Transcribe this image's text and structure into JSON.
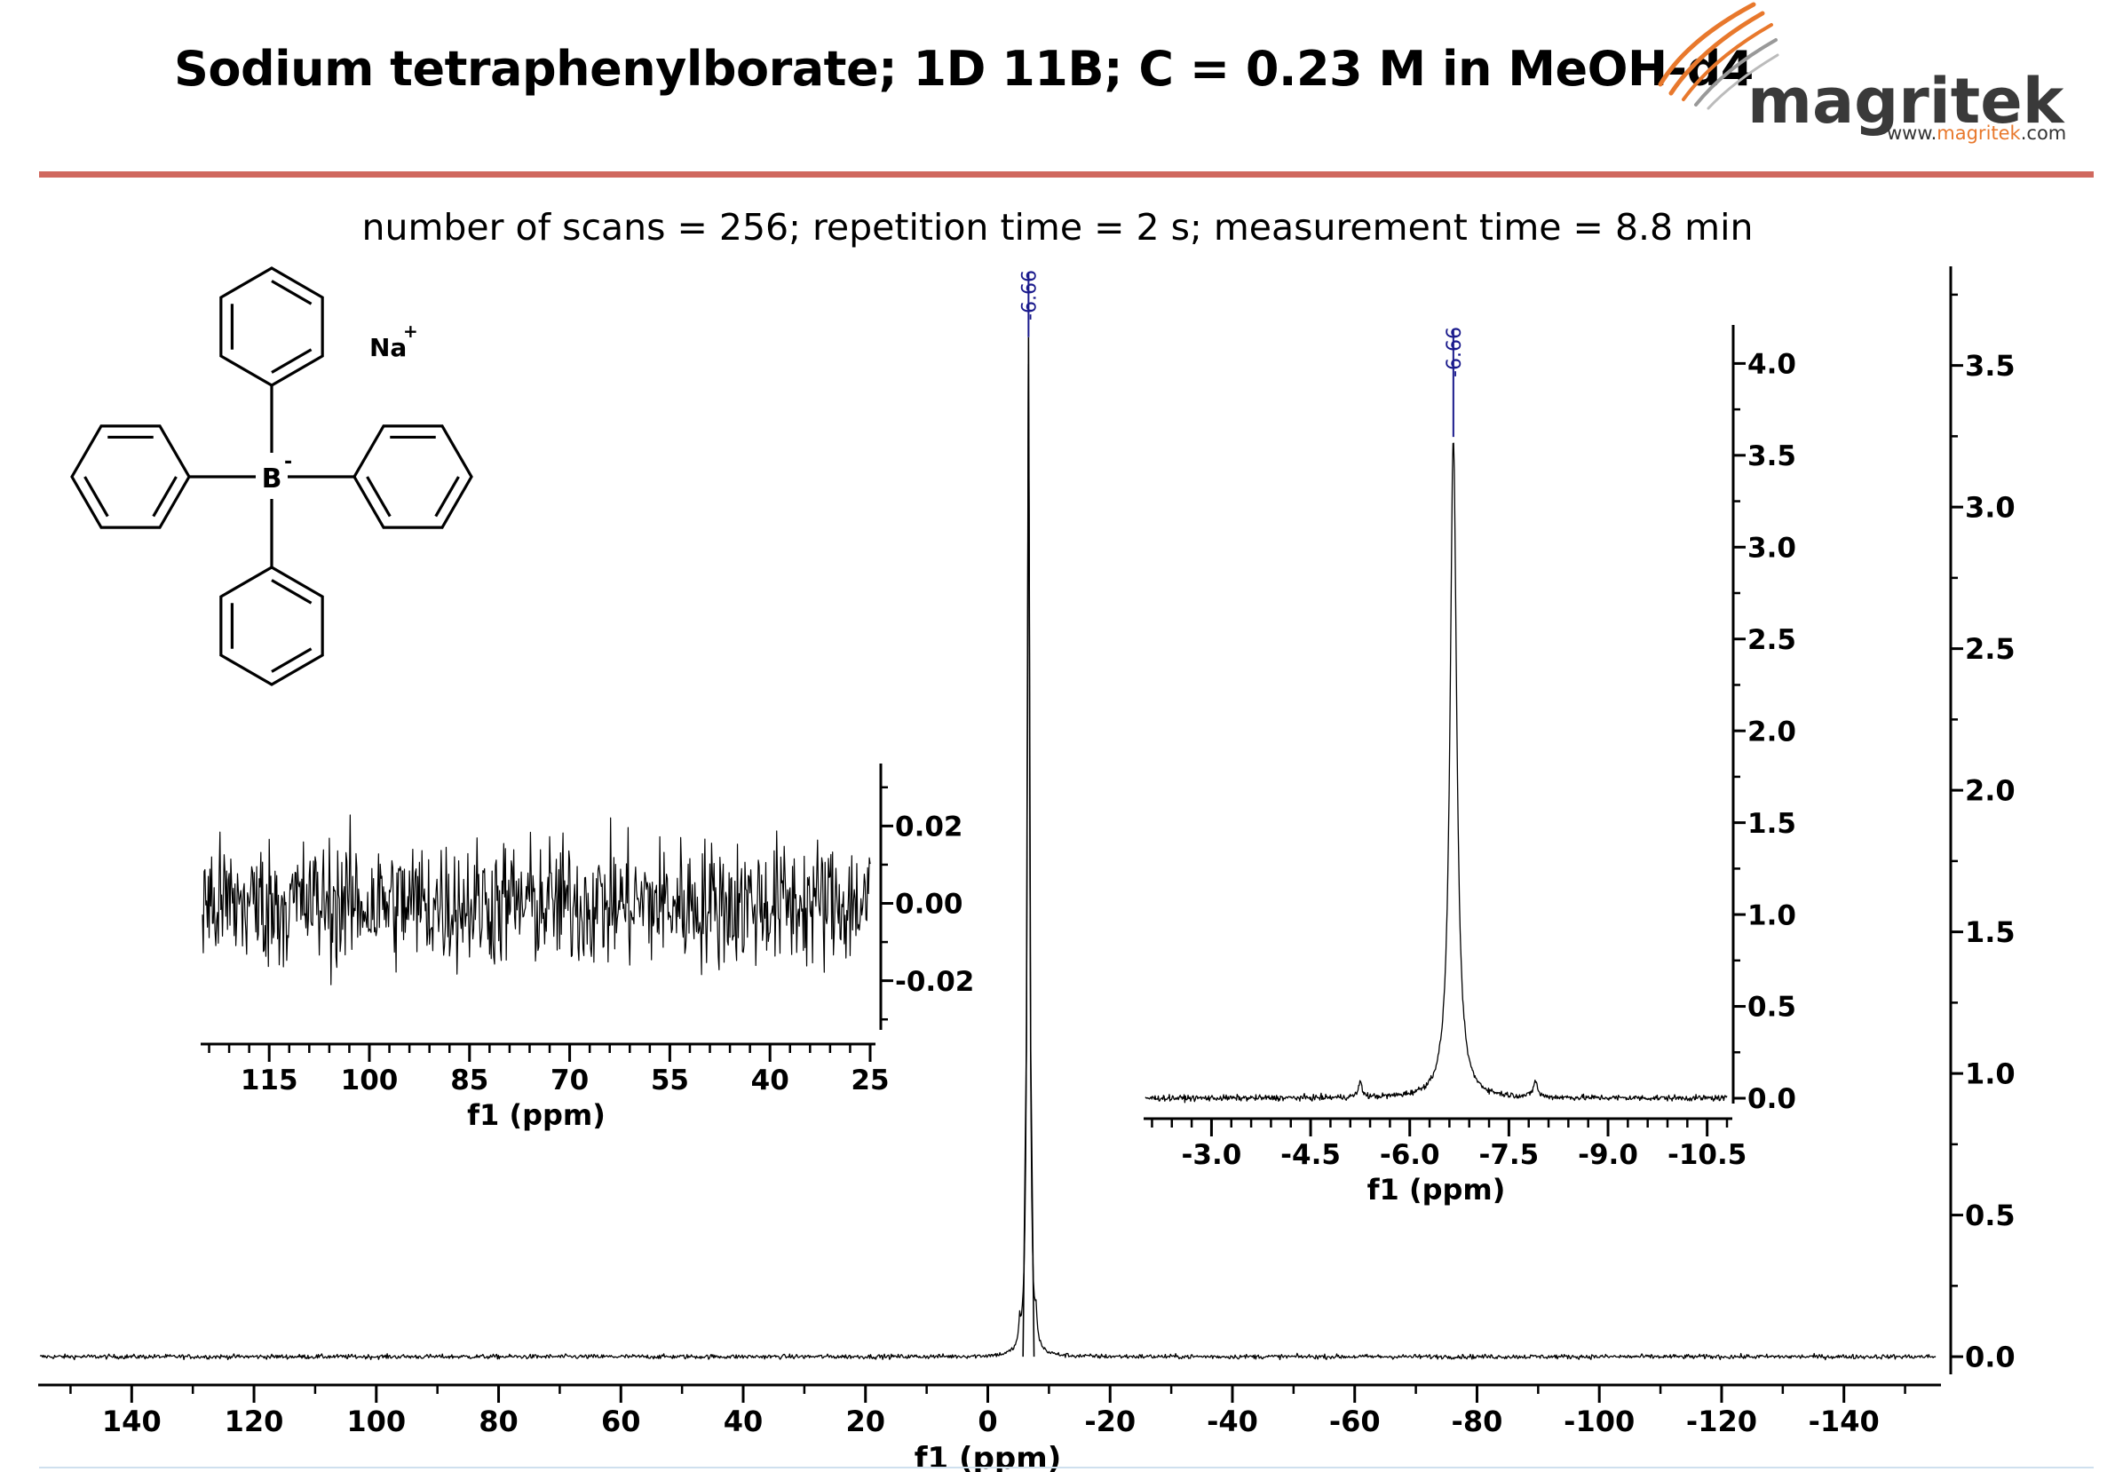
{
  "header": {
    "title": "Sodium tetraphenylborate; 1D 11B; C = 0.23 M in MeOH-d4",
    "subtitle": "number of scans = 256; repetition time = 2 s; measurement time = 8.8 min"
  },
  "logo": {
    "brand": "magritek",
    "url_prefix": "www.",
    "url_brand": "magritek",
    "url_suffix": ".com",
    "accent_color": "#e8782c"
  },
  "molecule": {
    "counterion": "Na",
    "counterion_charge": "+",
    "center_atom": "B",
    "center_charge": "-"
  },
  "colors": {
    "peak_label": "#1a1a8c",
    "rule": "#d0685e"
  },
  "chart_data": [
    {
      "type": "line",
      "id": "main",
      "xlabel": "f1 (ppm)",
      "xlim": [
        155,
        -155
      ],
      "x_ticks": [
        140,
        120,
        100,
        80,
        60,
        40,
        20,
        0,
        -20,
        -40,
        -60,
        -80,
        -100,
        -120,
        -140
      ],
      "x_tick_labels": [
        "140",
        "120",
        "100",
        "80",
        "60",
        "40",
        "20",
        "0",
        "-20",
        "-40",
        "-60",
        "-80",
        "-100",
        "-120",
        "-140"
      ],
      "ylim": [
        -0.1,
        3.85
      ],
      "y_ticks": [
        0.0,
        0.5,
        1.0,
        1.5,
        2.0,
        2.5,
        3.0,
        3.5
      ],
      "y_tick_labels": [
        "0.0",
        "0.5",
        "1.0",
        "1.5",
        "2.0",
        "2.5",
        "3.0",
        "3.5"
      ],
      "y_axis_side": "right",
      "peaks": [
        {
          "x": -6.66,
          "y": 3.6,
          "width": 0.45,
          "label": "-6.66"
        },
        {
          "x": -5.2,
          "y": 0.08,
          "width": 0.3
        },
        {
          "x": -7.9,
          "y": 0.09,
          "width": 0.3
        }
      ]
    },
    {
      "type": "line",
      "id": "inset-noise",
      "xlabel": "f1 (ppm)",
      "xlim": [
        125,
        25
      ],
      "x_ticks": [
        115,
        100,
        85,
        70,
        55,
        40,
        25
      ],
      "x_tick_labels": [
        "115",
        "100",
        "85",
        "70",
        "55",
        "40",
        "25"
      ],
      "ylim": [
        -0.035,
        0.035
      ],
      "y_ticks": [
        0.02,
        0.0,
        -0.02
      ],
      "y_tick_labels": [
        "0.02",
        "0.00",
        "-0.02"
      ],
      "y_axis_side": "right",
      "noise_amplitude": 0.012
    },
    {
      "type": "line",
      "id": "inset-peak",
      "xlabel": "f1 (ppm)",
      "xlim": [
        -2.0,
        -10.8
      ],
      "x_ticks": [
        -3.0,
        -4.5,
        -6.0,
        -7.5,
        -9.0,
        -10.5
      ],
      "x_tick_labels": [
        "-3.0",
        "-4.5",
        "-6.0",
        "-7.5",
        "-9.0",
        "-10.5"
      ],
      "ylim": [
        0.0,
        4.2
      ],
      "y_ticks": [
        0.0,
        0.5,
        1.0,
        1.5,
        2.0,
        2.5,
        3.0,
        3.5,
        4.0
      ],
      "y_tick_labels": [
        "0.0",
        "0.5",
        "1.0",
        "1.5",
        "2.0",
        "2.5",
        "3.0",
        "3.5",
        "4.0"
      ],
      "y_axis_side": "right",
      "peaks": [
        {
          "x": -6.66,
          "y": 3.6,
          "width": 0.12,
          "label": "-6.66"
        },
        {
          "x": -5.25,
          "y": 0.08,
          "width": 0.07
        },
        {
          "x": -7.9,
          "y": 0.09,
          "width": 0.07
        }
      ]
    }
  ]
}
